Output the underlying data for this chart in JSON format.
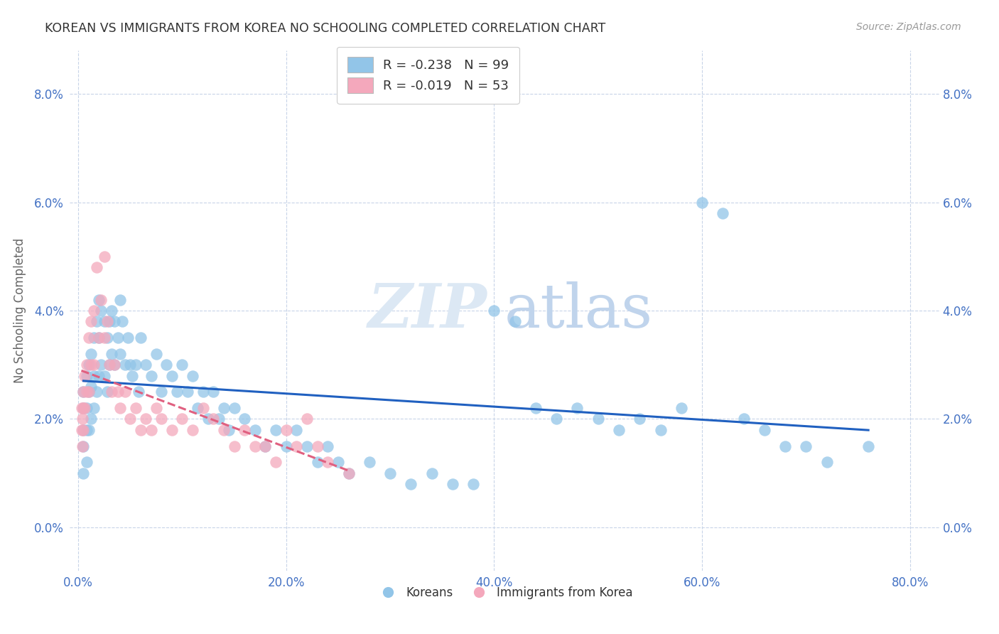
{
  "title": "KOREAN VS IMMIGRANTS FROM KOREA NO SCHOOLING COMPLETED CORRELATION CHART",
  "source": "Source: ZipAtlas.com",
  "ylabel": "No Schooling Completed",
  "blue_color": "#92C5E8",
  "pink_color": "#F4A8BC",
  "blue_line_color": "#2060C0",
  "pink_line_color": "#E06080",
  "watermark_zip": "ZIP",
  "watermark_atlas": "atlas",
  "background_color": "#ffffff",
  "grid_color": "#c8d4e8",
  "title_color": "#333333",
  "axis_label_color": "#4472C4",
  "legend1_r": "-0.238",
  "legend1_n": "99",
  "legend2_r": "-0.019",
  "legend2_n": "53",
  "legend_labels": [
    "Koreans",
    "Immigrants from Korea"
  ],
  "xtick_vals": [
    0.0,
    0.2,
    0.4,
    0.6,
    0.8
  ],
  "ytick_vals": [
    0.0,
    0.02,
    0.04,
    0.06,
    0.08
  ],
  "xlim": [
    -0.008,
    0.828
  ],
  "ylim": [
    -0.008,
    0.088
  ],
  "koreans_x": [
    0.005,
    0.005,
    0.005,
    0.005,
    0.005,
    0.008,
    0.008,
    0.008,
    0.008,
    0.01,
    0.01,
    0.01,
    0.012,
    0.012,
    0.012,
    0.015,
    0.015,
    0.015,
    0.018,
    0.018,
    0.02,
    0.02,
    0.02,
    0.022,
    0.022,
    0.025,
    0.025,
    0.028,
    0.028,
    0.03,
    0.03,
    0.032,
    0.032,
    0.035,
    0.035,
    0.038,
    0.04,
    0.04,
    0.042,
    0.045,
    0.048,
    0.05,
    0.052,
    0.055,
    0.058,
    0.06,
    0.065,
    0.07,
    0.075,
    0.08,
    0.085,
    0.09,
    0.095,
    0.1,
    0.105,
    0.11,
    0.115,
    0.12,
    0.125,
    0.13,
    0.135,
    0.14,
    0.145,
    0.15,
    0.16,
    0.17,
    0.18,
    0.19,
    0.2,
    0.21,
    0.22,
    0.23,
    0.24,
    0.25,
    0.26,
    0.28,
    0.3,
    0.32,
    0.34,
    0.36,
    0.38,
    0.4,
    0.42,
    0.44,
    0.46,
    0.48,
    0.5,
    0.52,
    0.54,
    0.56,
    0.58,
    0.6,
    0.62,
    0.64,
    0.66,
    0.68,
    0.7,
    0.72,
    0.76
  ],
  "koreans_y": [
    0.025,
    0.022,
    0.018,
    0.015,
    0.01,
    0.028,
    0.022,
    0.018,
    0.012,
    0.03,
    0.025,
    0.018,
    0.032,
    0.026,
    0.02,
    0.035,
    0.028,
    0.022,
    0.038,
    0.025,
    0.042,
    0.035,
    0.028,
    0.04,
    0.03,
    0.038,
    0.028,
    0.035,
    0.025,
    0.038,
    0.03,
    0.04,
    0.032,
    0.038,
    0.03,
    0.035,
    0.042,
    0.032,
    0.038,
    0.03,
    0.035,
    0.03,
    0.028,
    0.03,
    0.025,
    0.035,
    0.03,
    0.028,
    0.032,
    0.025,
    0.03,
    0.028,
    0.025,
    0.03,
    0.025,
    0.028,
    0.022,
    0.025,
    0.02,
    0.025,
    0.02,
    0.022,
    0.018,
    0.022,
    0.02,
    0.018,
    0.015,
    0.018,
    0.015,
    0.018,
    0.015,
    0.012,
    0.015,
    0.012,
    0.01,
    0.012,
    0.01,
    0.008,
    0.01,
    0.008,
    0.008,
    0.04,
    0.038,
    0.022,
    0.02,
    0.022,
    0.02,
    0.018,
    0.02,
    0.018,
    0.022,
    0.06,
    0.058,
    0.02,
    0.018,
    0.015,
    0.015,
    0.012,
    0.015
  ],
  "immigrants_x": [
    0.003,
    0.003,
    0.004,
    0.004,
    0.005,
    0.005,
    0.005,
    0.006,
    0.006,
    0.008,
    0.008,
    0.01,
    0.01,
    0.012,
    0.012,
    0.015,
    0.015,
    0.018,
    0.02,
    0.022,
    0.025,
    0.025,
    0.028,
    0.03,
    0.032,
    0.035,
    0.038,
    0.04,
    0.045,
    0.05,
    0.055,
    0.06,
    0.065,
    0.07,
    0.075,
    0.08,
    0.09,
    0.1,
    0.11,
    0.12,
    0.13,
    0.14,
    0.15,
    0.16,
    0.17,
    0.18,
    0.19,
    0.2,
    0.21,
    0.22,
    0.23,
    0.24,
    0.26
  ],
  "immigrants_y": [
    0.022,
    0.018,
    0.02,
    0.015,
    0.025,
    0.022,
    0.018,
    0.028,
    0.022,
    0.03,
    0.025,
    0.035,
    0.025,
    0.038,
    0.03,
    0.04,
    0.03,
    0.048,
    0.035,
    0.042,
    0.05,
    0.035,
    0.038,
    0.03,
    0.025,
    0.03,
    0.025,
    0.022,
    0.025,
    0.02,
    0.022,
    0.018,
    0.02,
    0.018,
    0.022,
    0.02,
    0.018,
    0.02,
    0.018,
    0.022,
    0.02,
    0.018,
    0.015,
    0.018,
    0.015,
    0.015,
    0.012,
    0.018,
    0.015,
    0.02,
    0.015,
    0.012,
    0.01
  ]
}
